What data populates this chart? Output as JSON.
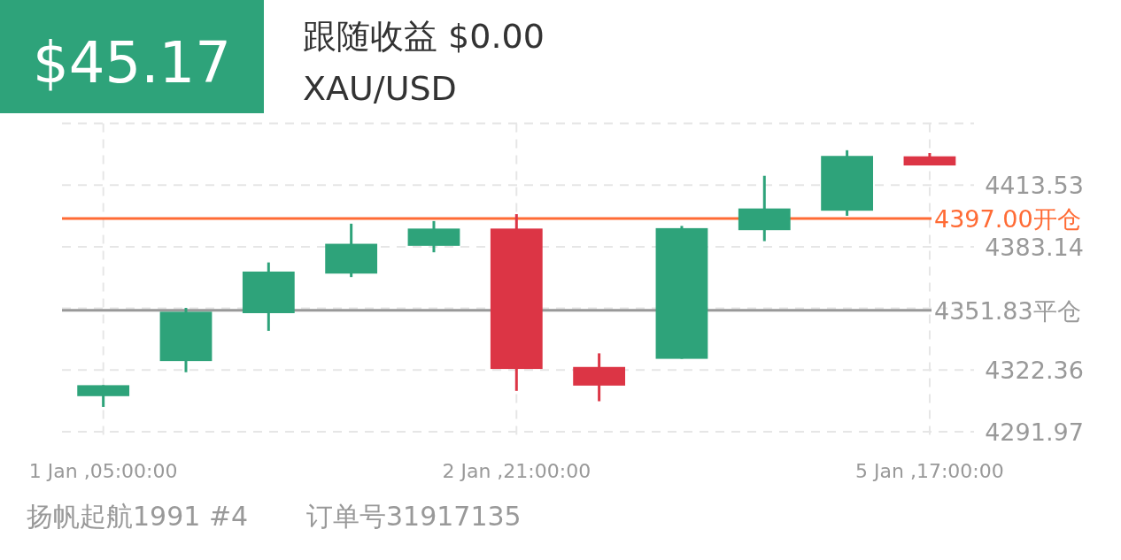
{
  "chart_data": {
    "type": "candlestick",
    "title": "$45.17",
    "subtitle": "跟随收益 $0.00",
    "annotations": [
      "XAU/USD",
      "扬帆起航1991 #4",
      "订单号31917135"
    ],
    "categories": [
      "1 Jan ,05:00:00",
      null,
      null,
      null,
      null,
      "2 Jan ,21:00:00",
      null,
      null,
      null,
      null,
      "5 Jan ,17:00:00"
    ],
    "ohlc": [
      [
        4309.5,
        4314.9,
        4304.2,
        4314.9
      ],
      [
        4326.8,
        4353.0,
        4321.3,
        4351.1
      ],
      [
        4350.4,
        4375.4,
        4341.7,
        4370.9
      ],
      [
        4369.9,
        4394.5,
        4368.2,
        4384.6
      ],
      [
        4383.6,
        4395.8,
        4380.4,
        4392.1
      ],
      [
        4392.1,
        4399.2,
        4312.1,
        4322.9
      ],
      [
        4323.9,
        4330.6,
        4307.0,
        4314.7
      ],
      [
        4327.9,
        4393.4,
        4327.9,
        4392.3
      ],
      [
        4391.3,
        4418.1,
        4385.9,
        4402.0
      ],
      [
        4400.9,
        4430.7,
        4398.4,
        4427.9
      ],
      [
        4427.7,
        4429.3,
        4423.2,
        4423.2
      ]
    ],
    "colors": [
      "#2ea37a",
      "#2ea37a",
      "#2ea37a",
      "#2ea37a",
      "#2ea37a",
      "#dc3545",
      "#dc3545",
      "#2ea37a",
      "#2ea37a",
      "#2ea37a",
      "#dc3545"
    ],
    "ylim": [
      4291.97,
      4443.92
    ],
    "yticks": [
      4291.97,
      4322.36,
      {
        "value": 4352.75,
        "label": null
      },
      4383.14,
      4413.53,
      {
        "value": 4443.92,
        "label": null
      }
    ],
    "ref_lines": [
      {
        "axis": "y",
        "value": 4397.0,
        "label": "4397.00开仓",
        "color": "#ff6b35"
      },
      {
        "axis": "y",
        "value": 4351.83,
        "label": "4351.83平仓",
        "color": "#999999"
      }
    ],
    "grid": true
  }
}
